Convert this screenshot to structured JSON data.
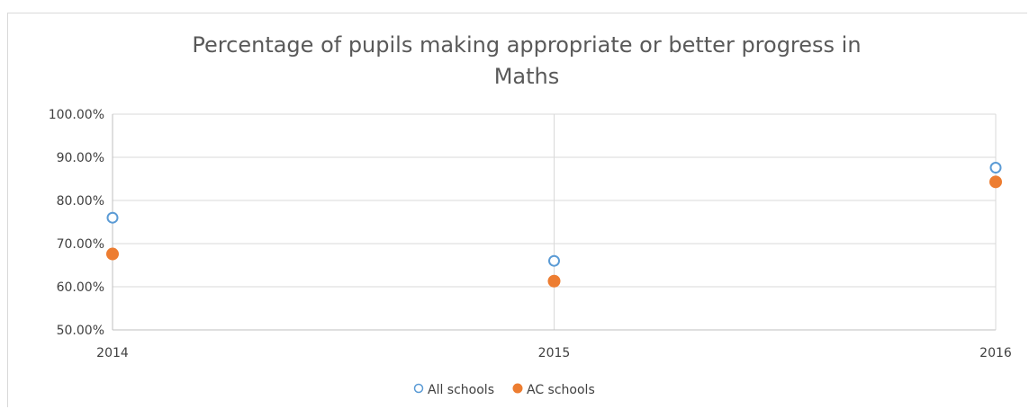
{
  "chart_data": {
    "type": "scatter",
    "title_lines": [
      "Percentage of pupils making appropriate or better progress in",
      "Maths"
    ],
    "x": [
      2014,
      2015,
      2016
    ],
    "x_tick_labels": [
      "2014",
      "2015",
      "2016"
    ],
    "xlim": [
      2014,
      2016
    ],
    "ylim": [
      0.5,
      1.0
    ],
    "y_ticks": [
      0.5,
      0.6,
      0.7,
      0.8,
      0.9,
      1.0
    ],
    "y_tick_labels": [
      "50.00%",
      "60.00%",
      "70.00%",
      "80.00%",
      "90.00%",
      "100.00%"
    ],
    "grid": true,
    "legend_position": "bottom",
    "series": [
      {
        "name": "All schools",
        "values": [
          0.76,
          0.66,
          0.876
        ],
        "marker": "hollow-circle",
        "color": "#5b9bd5"
      },
      {
        "name": "AC schools",
        "values": [
          0.676,
          0.613,
          0.843
        ],
        "marker": "filled-circle",
        "color": "#ed7d31"
      }
    ]
  }
}
